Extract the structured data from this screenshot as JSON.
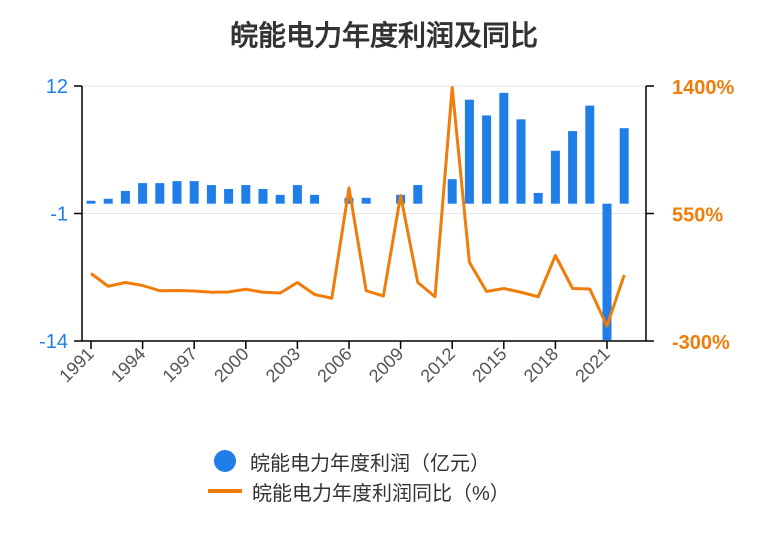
{
  "colors": {
    "bar": "#1f7ee8",
    "line": "#f07d0a",
    "text": "#333333",
    "axis": "#000000",
    "grid": "#e6e6e6"
  },
  "chart_data": {
    "type": "bar+line",
    "title": "皖能电力年度利润及同比",
    "x": [
      1991,
      1992,
      1993,
      1994,
      1995,
      1996,
      1997,
      1998,
      1999,
      2000,
      2001,
      2002,
      2003,
      2004,
      2005,
      2006,
      2007,
      2008,
      2009,
      2010,
      2011,
      2012,
      2013,
      2014,
      2015,
      2016,
      2017,
      2018,
      2019,
      2020,
      2021,
      2022
    ],
    "x_tick_labels": [
      "1991",
      "1994",
      "1997",
      "2000",
      "2003",
      "2006",
      "2009",
      "2012",
      "2015",
      "2018",
      "2021"
    ],
    "left_axis": {
      "ticks": [
        "12",
        "-1",
        "-14"
      ],
      "ylim": [
        -14,
        12
      ],
      "color": "#1f7ee8"
    },
    "right_axis": {
      "ticks": [
        "1400%",
        "550%",
        "-300%"
      ],
      "ylim": [
        -300,
        1400
      ],
      "color": "#f07d0a"
    },
    "grid": "horizontal",
    "series": [
      {
        "name": "皖能电力年度利润（亿元）",
        "type": "bar",
        "axis": "left",
        "values": [
          0.3,
          0.5,
          1.3,
          2.1,
          2.1,
          2.3,
          2.3,
          1.9,
          1.5,
          1.9,
          1.5,
          0.9,
          1.9,
          0.9,
          0,
          0.6,
          0.6,
          0,
          0.9,
          1.9,
          0,
          2.5,
          10.6,
          9.0,
          11.3,
          8.6,
          1.1,
          5.4,
          7.4,
          10.0,
          -13.9,
          7.7
        ]
      },
      {
        "name": "皖能电力年度利润同比（%）",
        "type": "line",
        "axis": "right",
        "values": [
          150,
          65,
          90,
          70,
          35,
          37,
          33,
          25,
          27,
          45,
          25,
          20,
          90,
          10,
          -15,
          720,
          35,
          0,
          670,
          90,
          -5,
          1390,
          225,
          30,
          50,
          25,
          -5,
          270,
          50,
          47,
          -200,
          140
        ]
      }
    ]
  }
}
